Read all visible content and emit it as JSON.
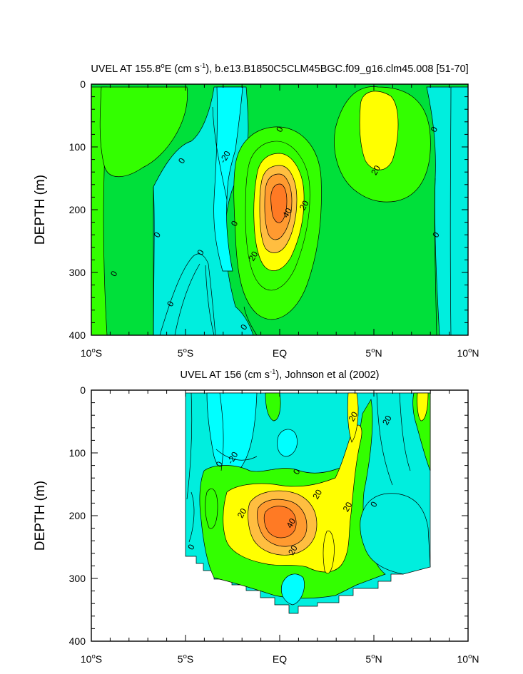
{
  "chart_data": [
    {
      "type": "contour",
      "title": "UVEL AT 155.8°E (cm s-1), b.e13.B1850C5CLM45BGC.f09_g16.clm45.008 [51-70]",
      "title_parts": {
        "before_sup1": "UVEL AT 155.8",
        "sup1": "o",
        "between": "E (cm s",
        "sup2": "-1",
        "after_sup2": "), b.e13.B1850C5CLM45BGC.f09_g16.clm45.008 [51-70]"
      },
      "ylabel": "DEPTH (m)",
      "x_ticks": [
        {
          "value": -10,
          "num": "10",
          "deg": "o",
          "hemi": "S"
        },
        {
          "value": -5,
          "num": "5",
          "deg": "o",
          "hemi": "S"
        },
        {
          "value": 0,
          "num": "EQ",
          "deg": "",
          "hemi": ""
        },
        {
          "value": 5,
          "num": "5",
          "deg": "o",
          "hemi": "N"
        },
        {
          "value": 10,
          "num": "10",
          "deg": "o",
          "hemi": "N"
        }
      ],
      "y_ticks": [
        "0",
        "100",
        "200",
        "300",
        "400"
      ],
      "x_range": [
        -10,
        10
      ],
      "depth_range": [
        0,
        400
      ],
      "contour_interval": 10,
      "contour_labels": [
        {
          "text": "0",
          "lat": -8.8,
          "depth": 302
        },
        {
          "text": "0",
          "lat": -6.5,
          "depth": 240
        },
        {
          "text": "0",
          "lat": -5.2,
          "depth": 122
        },
        {
          "text": "0",
          "lat": -4.2,
          "depth": 268
        },
        {
          "text": "0",
          "lat": -5.8,
          "depth": 350
        },
        {
          "text": "-20",
          "lat": -2.9,
          "depth": 116
        },
        {
          "text": "0",
          "lat": -2.4,
          "depth": 222
        },
        {
          "text": "0",
          "lat": -1.9,
          "depth": 387
        },
        {
          "text": "0",
          "lat": 0.0,
          "depth": 72
        },
        {
          "text": "40",
          "lat": 0.4,
          "depth": 205
        },
        {
          "text": "20",
          "lat": 1.3,
          "depth": 193
        },
        {
          "text": "20",
          "lat": -1.4,
          "depth": 274
        },
        {
          "text": "20",
          "lat": 5.1,
          "depth": 137
        },
        {
          "text": "0",
          "lat": 8.2,
          "depth": 72
        },
        {
          "text": "0",
          "lat": 8.3,
          "depth": 240
        }
      ]
    },
    {
      "type": "contour",
      "title": "UVEL AT 156 (cm s-1), Johnson et al (2002)",
      "title_parts": {
        "before_sup": "UVEL AT 156 (cm s",
        "sup": "-1",
        "after_sup": "), Johnson et al (2002)"
      },
      "ylabel": "DEPTH (m)",
      "x_ticks": [
        {
          "value": -10,
          "num": "10",
          "deg": "o",
          "hemi": "S"
        },
        {
          "value": -5,
          "num": "5",
          "deg": "o",
          "hemi": "S"
        },
        {
          "value": 0,
          "num": "EQ",
          "deg": "",
          "hemi": ""
        },
        {
          "value": 5,
          "num": "5",
          "deg": "o",
          "hemi": "N"
        },
        {
          "value": 10,
          "num": "10",
          "deg": "o",
          "hemi": "N"
        }
      ],
      "y_ticks": [
        "0",
        "100",
        "200",
        "300",
        "400"
      ],
      "x_range": [
        -10,
        10
      ],
      "depth_range": [
        0,
        400
      ],
      "data_lat_range": [
        -5,
        8
      ],
      "contour_interval": 10,
      "contour_labels": [
        {
          "text": "-20",
          "lat": -2.5,
          "depth": 108
        },
        {
          "text": "0",
          "lat": -3.2,
          "depth": 118
        },
        {
          "text": "0",
          "lat": 0.9,
          "depth": 130
        },
        {
          "text": "20",
          "lat": 3.9,
          "depth": 42
        },
        {
          "text": "20",
          "lat": 5.7,
          "depth": 48
        },
        {
          "text": "20",
          "lat": 2.0,
          "depth": 166
        },
        {
          "text": "20",
          "lat": 3.6,
          "depth": 186
        },
        {
          "text": "20",
          "lat": -2.0,
          "depth": 196
        },
        {
          "text": "40",
          "lat": 0.6,
          "depth": 212
        },
        {
          "text": "20",
          "lat": 0.7,
          "depth": 255
        },
        {
          "text": "0",
          "lat": 5.0,
          "depth": 182
        },
        {
          "text": "0",
          "lat": -4.7,
          "depth": 250
        }
      ]
    }
  ]
}
